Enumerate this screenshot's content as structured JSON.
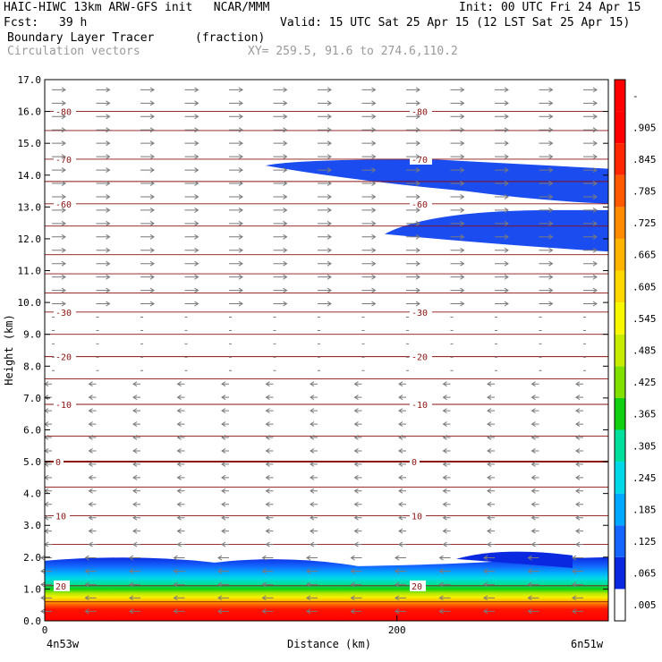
{
  "header": {
    "line1_left": "HAIC-HIWC 13km ARW-GFS init   NCAR/MMM",
    "line1_right": "Init: 00 UTC Fri 24 Apr 15",
    "fcst_label": "Fcst:",
    "fcst_value": "39 h",
    "valid": "Valid: 15 UTC Sat 25 Apr 15 (12 LST Sat 25 Apr 15)",
    "field_name": "Boundary Layer Tracer",
    "field_units": "(fraction)",
    "vectors_label": "Circulation vectors",
    "xy_label": "XY= 259.5, 91.6 to 274.6,110.2"
  },
  "chart_data": {
    "type": "heatmap",
    "title": "Boundary Layer Tracer (fraction)",
    "xlabel": "Distance (km)",
    "ylabel": "Height (km)",
    "xlim": [
      0,
      320
    ],
    "ylim": [
      0,
      17
    ],
    "x_ticks": [
      {
        "value": 0,
        "label": "0"
      },
      {
        "value": 200,
        "label": "200"
      }
    ],
    "x_end_labels": {
      "left": "4n53w",
      "right": "6n51w"
    },
    "y_ticks": [
      "0.0",
      "1.0",
      "2.0",
      "3.0",
      "4.0",
      "5.0",
      "6.0",
      "7.0",
      "8.0",
      "9.0",
      "10.0",
      "11.0",
      "12.0",
      "13.0",
      "14.0",
      "15.0",
      "16.0",
      "17.0"
    ],
    "colorbar": {
      "labels": [
        ".005",
        ".065",
        ".125",
        ".185",
        ".245",
        ".305",
        ".365",
        ".425",
        ".485",
        ".545",
        ".605",
        ".665",
        ".725",
        ".785",
        ".845",
        ".905",
        "-"
      ],
      "colors": [
        "#ffffff",
        "#0a28e0",
        "#1466ff",
        "#00a8ff",
        "#00d8e8",
        "#00e09c",
        "#10d010",
        "#80e000",
        "#c8ec00",
        "#f8f800",
        "#ffd800",
        "#ffb400",
        "#ff8c00",
        "#ff5a00",
        "#ff2800",
        "#ff0000",
        "#ff0000"
      ]
    },
    "temperature_contours": [
      {
        "value": -80,
        "label": "-80",
        "height_km": 16.0
      },
      {
        "value": -70,
        "label": "-70",
        "height_km": 14.5
      },
      {
        "value": -60,
        "label": "-60",
        "height_km": 13.1
      },
      {
        "value": -30,
        "label": "-30",
        "height_km": 9.7
      },
      {
        "value": -20,
        "label": "-20",
        "height_km": 8.3
      },
      {
        "value": -10,
        "label": "-10",
        "height_km": 6.8
      },
      {
        "value": 0,
        "label": "0",
        "height_km": 5.0
      },
      {
        "value": 10,
        "label": "10",
        "height_km": 3.3
      },
      {
        "value": 20,
        "label": "20",
        "height_km": 1.1
      }
    ],
    "boundary_layer_top_km": 2.0,
    "upper_tracer_bands_km": [
      [
        13.5,
        14.5
      ],
      [
        11.6,
        12.9
      ]
    ]
  }
}
